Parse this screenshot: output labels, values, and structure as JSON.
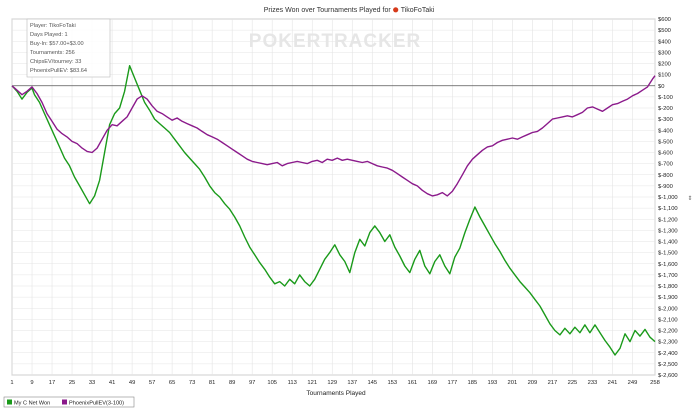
{
  "chart_data": {
    "type": "line",
    "title": "Prizes Won over Tournaments Played for",
    "player_name": "TikoFoTaki",
    "xlabel": "Tournaments Played",
    "ylabel": "",
    "xlim": [
      1,
      258
    ],
    "ylim": [
      -2600,
      600
    ],
    "x_ticks": [
      "1",
      "9",
      "17",
      "25",
      "33",
      "41",
      "49",
      "57",
      "65",
      "73",
      "81",
      "89",
      "97",
      "105",
      "113",
      "121",
      "129",
      "137",
      "145",
      "153",
      "161",
      "169",
      "177",
      "185",
      "193",
      "201",
      "209",
      "217",
      "225",
      "233",
      "241",
      "249",
      "258"
    ],
    "y_ticks": [
      "$600",
      "$500",
      "$400",
      "$300",
      "$200",
      "$100",
      "$0",
      "$-100",
      "$-200",
      "$-300",
      "$-400",
      "$-500",
      "$-600",
      "$-700",
      "$-800",
      "$-900",
      "$-1,000",
      "$-1,100",
      "$-1,200",
      "$-1,300",
      "$-1,400",
      "$-1,500",
      "$-1,600",
      "$-1,700",
      "$-1,800",
      "$-1,900",
      "$-2,000",
      "$-2,100",
      "$-2,200",
      "$-2,300",
      "$-2,400",
      "$-2,500",
      "$-2,600"
    ],
    "grid": true,
    "legend_position": "bottom-left",
    "info_box": [
      "Player: TikoFoTaki",
      "Days Played: 1",
      "Buy-In: $57.00+$3.00",
      "Tournaments: 256",
      "ChipsEV/tourney: 33",
      "PhoenixPullEV: $83.64"
    ],
    "watermark": "POKERTRACKER",
    "series": [
      {
        "name": "My C Net Won",
        "color": "#1a9a1a",
        "points": [
          [
            1,
            0
          ],
          [
            3,
            -50
          ],
          [
            5,
            -120
          ],
          [
            7,
            -60
          ],
          [
            9,
            -20
          ],
          [
            10,
            -80
          ],
          [
            12,
            -150
          ],
          [
            14,
            -250
          ],
          [
            16,
            -350
          ],
          [
            18,
            -450
          ],
          [
            20,
            -550
          ],
          [
            22,
            -650
          ],
          [
            24,
            -720
          ],
          [
            26,
            -820
          ],
          [
            28,
            -900
          ],
          [
            30,
            -980
          ],
          [
            32,
            -1060
          ],
          [
            34,
            -990
          ],
          [
            36,
            -850
          ],
          [
            38,
            -600
          ],
          [
            40,
            -350
          ],
          [
            42,
            -250
          ],
          [
            44,
            -200
          ],
          [
            46,
            -50
          ],
          [
            48,
            180
          ],
          [
            50,
            70
          ],
          [
            52,
            -40
          ],
          [
            54,
            -150
          ],
          [
            56,
            -220
          ],
          [
            58,
            -300
          ],
          [
            60,
            -340
          ],
          [
            62,
            -380
          ],
          [
            64,
            -420
          ],
          [
            66,
            -480
          ],
          [
            68,
            -540
          ],
          [
            70,
            -600
          ],
          [
            72,
            -650
          ],
          [
            74,
            -700
          ],
          [
            76,
            -750
          ],
          [
            78,
            -820
          ],
          [
            80,
            -900
          ],
          [
            82,
            -960
          ],
          [
            84,
            -1000
          ],
          [
            86,
            -1060
          ],
          [
            88,
            -1110
          ],
          [
            90,
            -1180
          ],
          [
            92,
            -1260
          ],
          [
            94,
            -1360
          ],
          [
            96,
            -1450
          ],
          [
            98,
            -1520
          ],
          [
            100,
            -1590
          ],
          [
            102,
            -1650
          ],
          [
            104,
            -1720
          ],
          [
            106,
            -1780
          ],
          [
            108,
            -1760
          ],
          [
            110,
            -1800
          ],
          [
            112,
            -1740
          ],
          [
            114,
            -1780
          ],
          [
            116,
            -1700
          ],
          [
            118,
            -1760
          ],
          [
            120,
            -1800
          ],
          [
            122,
            -1740
          ],
          [
            124,
            -1650
          ],
          [
            126,
            -1560
          ],
          [
            128,
            -1500
          ],
          [
            130,
            -1430
          ],
          [
            132,
            -1520
          ],
          [
            134,
            -1580
          ],
          [
            136,
            -1680
          ],
          [
            138,
            -1500
          ],
          [
            140,
            -1380
          ],
          [
            142,
            -1440
          ],
          [
            144,
            -1320
          ],
          [
            146,
            -1260
          ],
          [
            148,
            -1320
          ],
          [
            150,
            -1400
          ],
          [
            152,
            -1340
          ],
          [
            154,
            -1450
          ],
          [
            156,
            -1530
          ],
          [
            158,
            -1620
          ],
          [
            160,
            -1680
          ],
          [
            162,
            -1560
          ],
          [
            164,
            -1480
          ],
          [
            166,
            -1620
          ],
          [
            168,
            -1690
          ],
          [
            170,
            -1580
          ],
          [
            172,
            -1520
          ],
          [
            174,
            -1620
          ],
          [
            176,
            -1690
          ],
          [
            178,
            -1540
          ],
          [
            180,
            -1460
          ],
          [
            182,
            -1320
          ],
          [
            184,
            -1200
          ],
          [
            186,
            -1090
          ],
          [
            188,
            -1180
          ],
          [
            190,
            -1260
          ],
          [
            192,
            -1340
          ],
          [
            194,
            -1420
          ],
          [
            196,
            -1490
          ],
          [
            198,
            -1570
          ],
          [
            200,
            -1640
          ],
          [
            202,
            -1700
          ],
          [
            204,
            -1760
          ],
          [
            206,
            -1810
          ],
          [
            208,
            -1860
          ],
          [
            210,
            -1920
          ],
          [
            212,
            -1980
          ],
          [
            214,
            -2060
          ],
          [
            216,
            -2140
          ],
          [
            218,
            -2200
          ],
          [
            220,
            -2240
          ],
          [
            222,
            -2180
          ],
          [
            224,
            -2230
          ],
          [
            226,
            -2170
          ],
          [
            228,
            -2220
          ],
          [
            230,
            -2150
          ],
          [
            232,
            -2220
          ],
          [
            234,
            -2150
          ],
          [
            236,
            -2220
          ],
          [
            238,
            -2290
          ],
          [
            240,
            -2350
          ],
          [
            242,
            -2420
          ],
          [
            244,
            -2360
          ],
          [
            246,
            -2230
          ],
          [
            248,
            -2300
          ],
          [
            250,
            -2200
          ],
          [
            252,
            -2250
          ],
          [
            254,
            -2190
          ],
          [
            256,
            -2260
          ],
          [
            258,
            -2300
          ]
        ]
      },
      {
        "name": "PhoenixPullEV(3-100)",
        "color": "#8b1a8b",
        "points": [
          [
            1,
            0
          ],
          [
            3,
            -40
          ],
          [
            5,
            -80
          ],
          [
            7,
            -50
          ],
          [
            9,
            -10
          ],
          [
            11,
            -70
          ],
          [
            13,
            -150
          ],
          [
            15,
            -250
          ],
          [
            17,
            -320
          ],
          [
            19,
            -390
          ],
          [
            21,
            -430
          ],
          [
            23,
            -460
          ],
          [
            25,
            -500
          ],
          [
            27,
            -520
          ],
          [
            29,
            -560
          ],
          [
            31,
            -590
          ],
          [
            33,
            -600
          ],
          [
            35,
            -560
          ],
          [
            37,
            -480
          ],
          [
            39,
            -400
          ],
          [
            41,
            -350
          ],
          [
            43,
            -360
          ],
          [
            45,
            -320
          ],
          [
            47,
            -280
          ],
          [
            49,
            -200
          ],
          [
            51,
            -120
          ],
          [
            53,
            -90
          ],
          [
            55,
            -120
          ],
          [
            57,
            -180
          ],
          [
            59,
            -230
          ],
          [
            61,
            -250
          ],
          [
            63,
            -280
          ],
          [
            65,
            -310
          ],
          [
            67,
            -290
          ],
          [
            69,
            -320
          ],
          [
            71,
            -340
          ],
          [
            73,
            -360
          ],
          [
            75,
            -380
          ],
          [
            77,
            -410
          ],
          [
            79,
            -440
          ],
          [
            81,
            -460
          ],
          [
            83,
            -480
          ],
          [
            85,
            -510
          ],
          [
            87,
            -540
          ],
          [
            89,
            -570
          ],
          [
            91,
            -600
          ],
          [
            93,
            -630
          ],
          [
            95,
            -660
          ],
          [
            97,
            -680
          ],
          [
            99,
            -690
          ],
          [
            101,
            -700
          ],
          [
            103,
            -710
          ],
          [
            105,
            -700
          ],
          [
            107,
            -690
          ],
          [
            109,
            -720
          ],
          [
            111,
            -700
          ],
          [
            113,
            -690
          ],
          [
            115,
            -680
          ],
          [
            117,
            -690
          ],
          [
            119,
            -700
          ],
          [
            121,
            -680
          ],
          [
            123,
            -670
          ],
          [
            125,
            -690
          ],
          [
            127,
            -660
          ],
          [
            129,
            -670
          ],
          [
            131,
            -650
          ],
          [
            133,
            -670
          ],
          [
            135,
            -660
          ],
          [
            137,
            -670
          ],
          [
            139,
            -680
          ],
          [
            141,
            -690
          ],
          [
            143,
            -680
          ],
          [
            145,
            -700
          ],
          [
            147,
            -720
          ],
          [
            149,
            -730
          ],
          [
            151,
            -740
          ],
          [
            153,
            -760
          ],
          [
            155,
            -790
          ],
          [
            157,
            -820
          ],
          [
            159,
            -850
          ],
          [
            161,
            -880
          ],
          [
            163,
            -900
          ],
          [
            165,
            -940
          ],
          [
            167,
            -970
          ],
          [
            169,
            -990
          ],
          [
            171,
            -980
          ],
          [
            173,
            -960
          ],
          [
            175,
            -990
          ],
          [
            177,
            -950
          ],
          [
            179,
            -880
          ],
          [
            181,
            -800
          ],
          [
            183,
            -720
          ],
          [
            185,
            -660
          ],
          [
            187,
            -620
          ],
          [
            189,
            -580
          ],
          [
            191,
            -550
          ],
          [
            193,
            -540
          ],
          [
            195,
            -510
          ],
          [
            197,
            -490
          ],
          [
            199,
            -480
          ],
          [
            201,
            -470
          ],
          [
            203,
            -480
          ],
          [
            205,
            -460
          ],
          [
            207,
            -440
          ],
          [
            209,
            -420
          ],
          [
            211,
            -410
          ],
          [
            213,
            -380
          ],
          [
            215,
            -340
          ],
          [
            217,
            -300
          ],
          [
            219,
            -290
          ],
          [
            221,
            -280
          ],
          [
            223,
            -270
          ],
          [
            225,
            -280
          ],
          [
            227,
            -260
          ],
          [
            229,
            -240
          ],
          [
            231,
            -200
          ],
          [
            233,
            -190
          ],
          [
            235,
            -210
          ],
          [
            237,
            -230
          ],
          [
            239,
            -200
          ],
          [
            241,
            -170
          ],
          [
            243,
            -160
          ],
          [
            245,
            -140
          ],
          [
            247,
            -120
          ],
          [
            249,
            -90
          ],
          [
            251,
            -70
          ],
          [
            253,
            -40
          ],
          [
            255,
            -10
          ],
          [
            257,
            60
          ],
          [
            258,
            90
          ]
        ]
      }
    ]
  }
}
